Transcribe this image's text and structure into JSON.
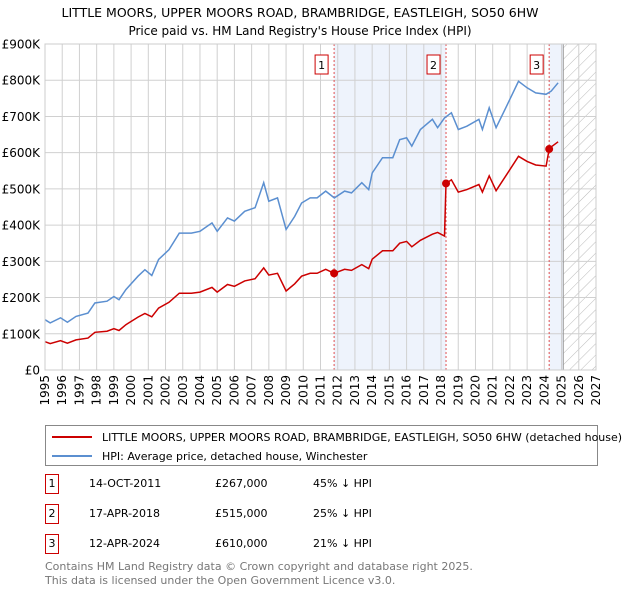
{
  "chart_data": {
    "type": "line",
    "title": "LITTLE MOORS, UPPER MOORS ROAD, BRAMBRIDGE, EASTLEIGH, SO50 6HW",
    "subtitle": "Price paid vs. HM Land Registry's House Price Index (HPI)",
    "xlim": [
      1995,
      2027
    ],
    "ylim": [
      0,
      900000
    ],
    "yticks": [
      0,
      100000,
      200000,
      300000,
      400000,
      500000,
      600000,
      700000,
      800000,
      900000
    ],
    "ytick_labels": [
      "£0",
      "£100K",
      "£200K",
      "£300K",
      "£400K",
      "£500K",
      "£600K",
      "£700K",
      "£800K",
      "£900K"
    ],
    "xticks": [
      1995,
      1996,
      1997,
      1998,
      1999,
      2000,
      2001,
      2002,
      2003,
      2004,
      2005,
      2006,
      2007,
      2008,
      2009,
      2010,
      2011,
      2012,
      2013,
      2014,
      2015,
      2016,
      2017,
      2018,
      2019,
      2020,
      2021,
      2022,
      2023,
      2024,
      2025,
      2026,
      2027
    ],
    "grid": true,
    "forecast_from": 2025.1,
    "series": [
      {
        "name": "LITTLE MOORS, UPPER MOORS ROAD, BRAMBRIDGE, EASTLEIGH, SO50 6HW (detached house)",
        "color": "#cc0000",
        "x": [
          1995.0,
          1995.3,
          1995.9,
          1996.3,
          1996.8,
          1997.5,
          1997.9,
          1998.6,
          1999.0,
          1999.3,
          1999.7,
          2000.4,
          2000.8,
          2001.2,
          2001.6,
          2002.2,
          2002.8,
          2003.5,
          2004.0,
          2004.7,
          2005.0,
          2005.6,
          2006.0,
          2006.6,
          2007.2,
          2007.7,
          2008.0,
          2008.5,
          2009.0,
          2009.5,
          2009.9,
          2010.4,
          2010.8,
          2011.3,
          2011.79,
          2012.4,
          2012.8,
          2013.4,
          2013.8,
          2014.0,
          2014.6,
          2015.2,
          2015.6,
          2016.0,
          2016.3,
          2016.8,
          2017.5,
          2017.8,
          2018.2,
          2018.29,
          2018.6,
          2019.0,
          2019.5,
          2020.2,
          2020.4,
          2020.8,
          2021.2,
          2021.8,
          2022.5,
          2023.0,
          2023.5,
          2024.1,
          2024.28,
          2024.4,
          2024.8
        ],
        "y": [
          78000,
          73000,
          81000,
          74000,
          83000,
          88000,
          104000,
          107000,
          114000,
          109000,
          125000,
          146000,
          156000,
          147000,
          171000,
          187000,
          212000,
          212000,
          215000,
          228000,
          215000,
          236000,
          231000,
          246000,
          252000,
          282000,
          262000,
          267000,
          218000,
          238000,
          259000,
          267000,
          267000,
          278000,
          267000,
          278000,
          275000,
          291000,
          280000,
          306000,
          329000,
          329000,
          350000,
          355000,
          340000,
          358000,
          375000,
          380000,
          370000,
          515000,
          525000,
          491000,
          498000,
          512000,
          491000,
          536000,
          495000,
          539000,
          590000,
          576000,
          566000,
          563000,
          610000,
          616000,
          630000
        ]
      },
      {
        "name": "HPI: Average price, detached house, Winchester",
        "color": "#5b8fd0",
        "x": [
          1995.0,
          1995.3,
          1995.9,
          1996.3,
          1996.8,
          1997.5,
          1997.9,
          1998.6,
          1999.0,
          1999.3,
          1999.7,
          2000.4,
          2000.8,
          2001.2,
          2001.6,
          2002.2,
          2002.8,
          2003.5,
          2004.0,
          2004.7,
          2005.0,
          2005.6,
          2006.0,
          2006.6,
          2007.2,
          2007.7,
          2008.0,
          2008.5,
          2009.0,
          2009.5,
          2009.9,
          2010.4,
          2010.8,
          2011.3,
          2011.8,
          2012.4,
          2012.8,
          2013.4,
          2013.8,
          2014.0,
          2014.6,
          2015.2,
          2015.6,
          2016.0,
          2016.3,
          2016.8,
          2017.5,
          2017.8,
          2018.2,
          2018.6,
          2019.0,
          2019.5,
          2020.2,
          2020.4,
          2020.8,
          2021.2,
          2021.8,
          2022.5,
          2023.0,
          2023.5,
          2024.1,
          2024.4,
          2024.8
        ],
        "y": [
          139000,
          130000,
          144000,
          132000,
          148000,
          157000,
          185000,
          190000,
          203000,
          194000,
          222000,
          259000,
          277000,
          261000,
          305000,
          332000,
          378000,
          378000,
          383000,
          406000,
          383000,
          420000,
          411000,
          438000,
          448000,
          517000,
          466000,
          475000,
          388000,
          424000,
          461000,
          475000,
          475000,
          494000,
          475000,
          494000,
          489000,
          517000,
          498000,
          544000,
          586000,
          586000,
          636000,
          641000,
          618000,
          664000,
          692000,
          669000,
          696000,
          710000,
          664000,
          673000,
          692000,
          664000,
          724000,
          669000,
          728000,
          797000,
          779000,
          765000,
          761000,
          770000,
          793000
        ]
      }
    ],
    "sales": [
      {
        "num": "1",
        "x": 2011.79,
        "y": 267000,
        "date": "14-OCT-2011",
        "price": "£267,000",
        "hpi": "45% ↓ HPI"
      },
      {
        "num": "2",
        "x": 2018.29,
        "y": 515000,
        "date": "17-APR-2018",
        "price": "£515,000",
        "hpi": "25% ↓ HPI"
      },
      {
        "num": "3",
        "x": 2024.28,
        "y": 610000,
        "date": "12-APR-2024",
        "price": "£610,000",
        "hpi": "21% ↓ HPI"
      }
    ]
  },
  "footer": {
    "line1": "Contains HM Land Registry data © Crown copyright and database right 2025.",
    "line2": "This data is licensed under the Open Government Licence v3.0."
  }
}
